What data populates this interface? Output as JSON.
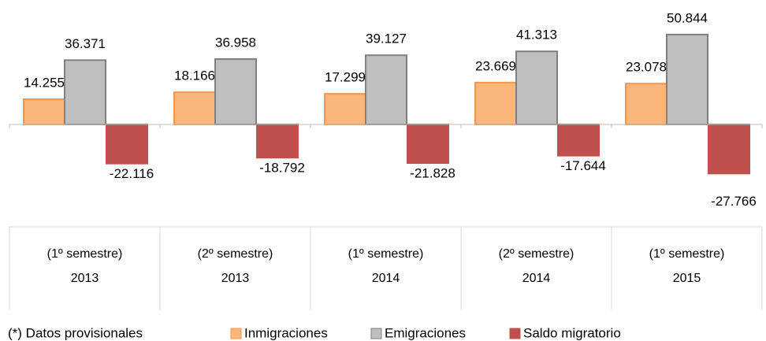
{
  "chart_data": {
    "type": "bar",
    "categories": [
      [
        "(1º semestre)",
        "2013"
      ],
      [
        "(2º semestre)",
        "2013"
      ],
      [
        "(1º semestre)",
        "2014"
      ],
      [
        "(2º semestre)",
        "2014"
      ],
      [
        "(1º semestre)",
        "2015"
      ]
    ],
    "series": [
      {
        "name": "Inmigraciones",
        "color": "#fbb77b",
        "values": [
          14255,
          18166,
          17299,
          23669,
          23078
        ],
        "value_labels": [
          "14.255",
          "18.166",
          "17.299",
          "23.669",
          "23.078"
        ]
      },
      {
        "name": "Emigraciones",
        "color": "#bfbfbf",
        "values": [
          36371,
          36958,
          39127,
          41313,
          50844
        ],
        "value_labels": [
          "36.371",
          "36.958",
          "39.127",
          "41.313",
          "50.844"
        ]
      },
      {
        "name": "Saldo migratorio",
        "color": "#c0504d",
        "values": [
          -22116,
          -18792,
          -21828,
          -17644,
          -27766
        ],
        "value_labels": [
          "-22.116",
          "-18.792",
          "-21.828",
          "-17.644",
          "-27.766"
        ]
      }
    ],
    "note": "(*) Datos provisionales",
    "legend": "bottom"
  }
}
